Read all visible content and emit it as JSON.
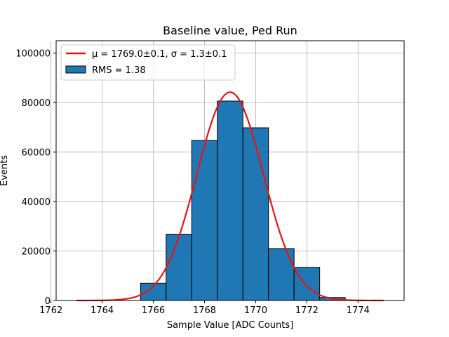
{
  "chart_data": {
    "type": "bar",
    "title": "Baseline value, Ped Run",
    "xlabel": "Sample Value [ADC Counts]",
    "ylabel": "Events",
    "xlim": [
      1762.2,
      1775.8
    ],
    "ylim": [
      0,
      105000
    ],
    "xticks": [
      1762,
      1764,
      1766,
      1768,
      1770,
      1772,
      1774
    ],
    "xtick_labels": [
      "1762",
      "1764",
      "1766",
      "1768",
      "1770",
      "1772",
      "1774"
    ],
    "yticks": [
      0,
      20000,
      40000,
      60000,
      80000,
      100000
    ],
    "ytick_labels": [
      "0",
      "20000",
      "40000",
      "60000",
      "80000",
      "100000"
    ],
    "grid": true,
    "legend_position": "top-left",
    "histogram": {
      "name": "RMS = 1.38",
      "color": "#1f77b4",
      "edge_color": "#000000",
      "bin_edges": [
        1765.5,
        1766.5,
        1767.5,
        1768.5,
        1769.5,
        1770.5,
        1771.5,
        1772.5,
        1773.5
      ],
      "values": [
        7000,
        26800,
        64700,
        80600,
        69800,
        21000,
        13400,
        1200
      ]
    },
    "fit": {
      "name": "μ = 1769.0±0.1, σ = 1.3±0.1",
      "color": "#ee1111",
      "type": "gaussian",
      "mu": 1769.0,
      "sigma": 1.3,
      "amplitude": 84200,
      "x_range": [
        1763.0,
        1775.0
      ]
    }
  }
}
